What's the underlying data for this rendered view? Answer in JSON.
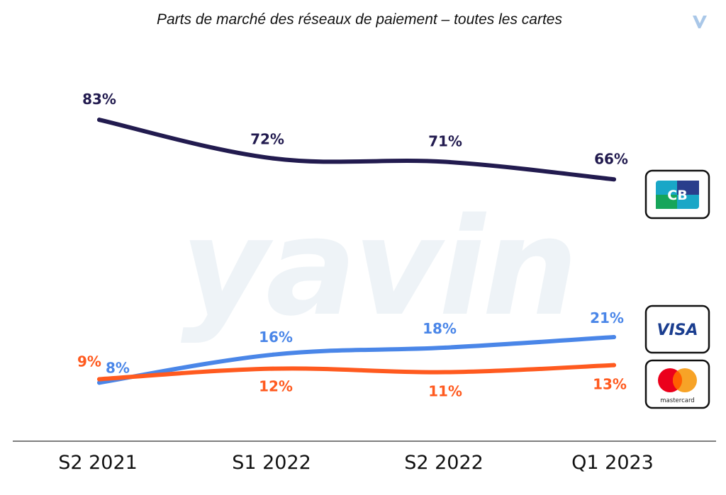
{
  "title": "Parts de marché des réseaux de paiement – toutes les cartes",
  "watermark": "yavin",
  "brand_icon": "yavin-v-logo-icon",
  "chart_data": {
    "type": "line",
    "title": "Parts de marché des réseaux de paiement – toutes les cartes",
    "xlabel": "",
    "ylabel": "",
    "categories": [
      "S2 2021",
      "S1 2022",
      "S2 2022",
      "Q1 2023"
    ],
    "ylim": [
      0,
      100
    ],
    "grid": false,
    "series": [
      {
        "key": "cb",
        "values": [
          83,
          72,
          71,
          66
        ],
        "labels": [
          "83%",
          "72%",
          "71%",
          "66%"
        ],
        "color": "#221b4f",
        "logo": "cb-card-logo-icon",
        "logo_text": "CB"
      },
      {
        "key": "visa",
        "values": [
          8,
          16,
          18,
          21
        ],
        "labels": [
          "8%",
          "16%",
          "18%",
          "21%"
        ],
        "color": "#4a86e8",
        "logo": "visa-logo-icon",
        "logo_text": "VISA"
      },
      {
        "key": "mastercard",
        "values": [
          9,
          12,
          11,
          13
        ],
        "labels": [
          "9%",
          "12%",
          "11%",
          "13%"
        ],
        "color": "#ff5a1f",
        "logo": "mastercard-logo-icon",
        "logo_text": "mastercard"
      }
    ]
  }
}
